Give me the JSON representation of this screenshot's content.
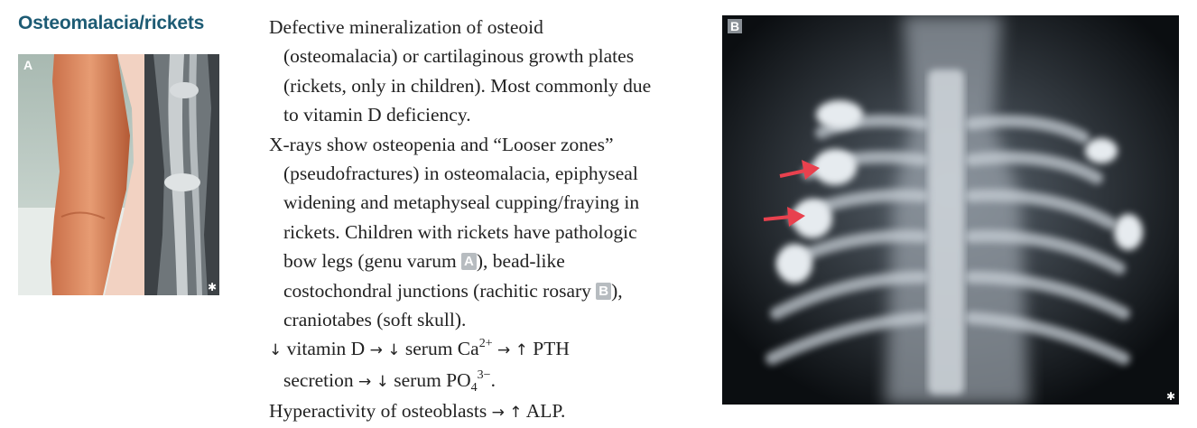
{
  "title": "Osteomalacia/rickets",
  "figure_a": {
    "label": "A",
    "marker": "✱",
    "description_icons": [
      "bowed-leg-photo",
      "leg-xray"
    ]
  },
  "figure_b": {
    "label": "B",
    "marker": "✱",
    "arrow_color": "#e8414e"
  },
  "text": {
    "p1": {
      "l1": "Defective mineralization of osteoid",
      "l2": "(osteomalacia) or cartilaginous growth plates",
      "l3": "(rickets, only in children). Most commonly due",
      "l4": "to vitamin D deficiency."
    },
    "p2": {
      "l1": "X-rays show osteopenia and “Looser zones”",
      "l2": "(pseudofractures) in osteomalacia, epiphyseal",
      "l3": "widening and metaphyseal cupping/fraying in",
      "l4": "rickets. Children with rickets have pathologic",
      "l5_pre": "bow legs (genu varum ",
      "badge_a": "A",
      "l5_post": "), bead-like",
      "l6_pre": "costochondral junctions (rachitic rosary ",
      "badge_b": "B",
      "l6_post": "),",
      "l7": "craniotabes (soft skull)."
    },
    "p3": {
      "down1": "↓",
      "vitd": " vitamin D ",
      "right1": "→",
      "down2": " ↓",
      "serum_ca": " serum Ca",
      "ca_sup": "2+",
      "right2": " →",
      "up1": " ↑",
      "pth": " PTH",
      "secretion": "secretion ",
      "right3": "→",
      "down3": " ↓",
      "serum_po": " serum PO",
      "po_sub": "4",
      "po_sup": "3−",
      "period": "."
    },
    "p4": {
      "pre": "Hyperactivity of osteoblasts ",
      "right": "→",
      "up": " ↑",
      "post": " ALP."
    }
  },
  "colors": {
    "title": "#1d5b74",
    "badge": "#b7bcc0",
    "arrow": "#e8414e"
  }
}
